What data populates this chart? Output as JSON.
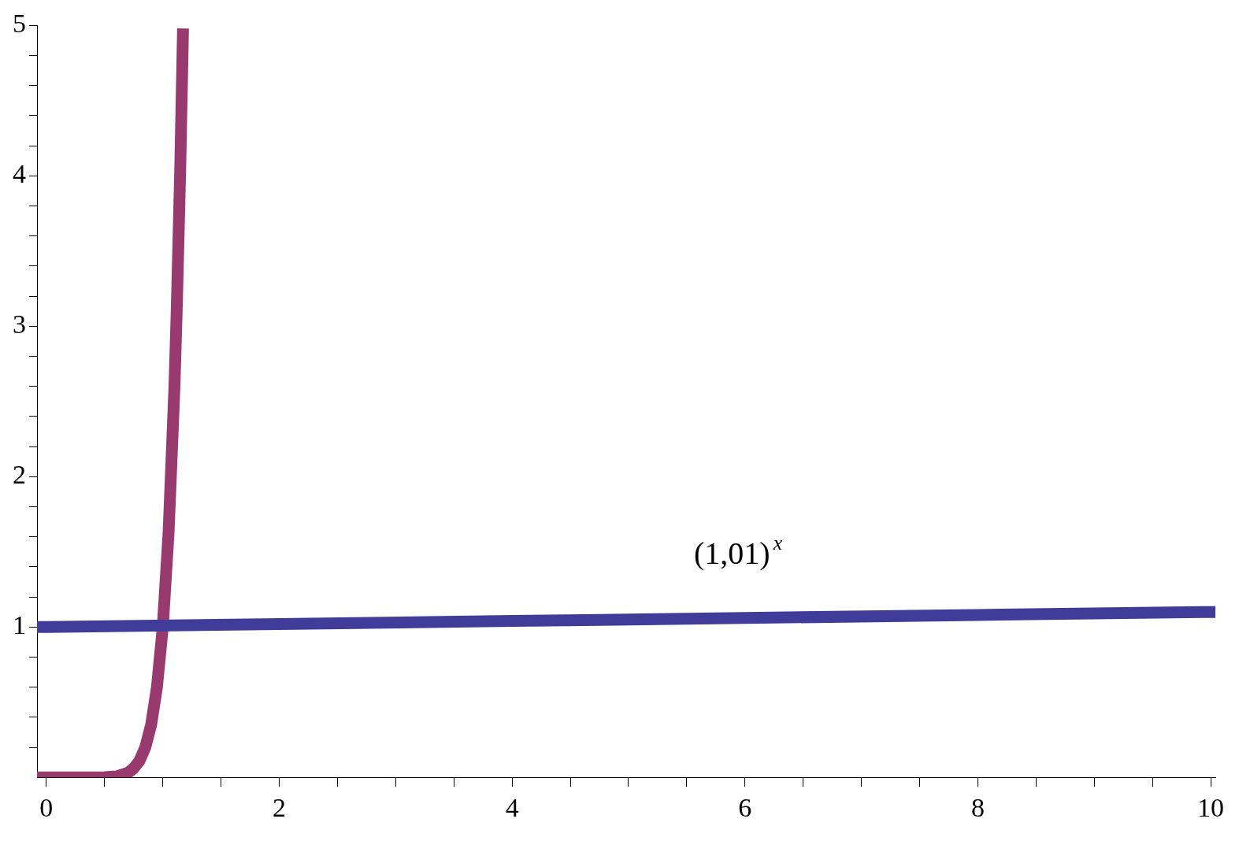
{
  "chart_data": {
    "type": "line",
    "xlim": [
      -0.08,
      10.04
    ],
    "ylim": [
      0,
      5
    ],
    "xticks": [
      0,
      {
        "value": 0.5,
        "label": null
      },
      {
        "value": 1,
        "label": null
      },
      {
        "value": 1.5,
        "label": null
      },
      2,
      {
        "value": 2.5,
        "label": null
      },
      {
        "value": 3,
        "label": null
      },
      {
        "value": 3.5,
        "label": null
      },
      4,
      {
        "value": 4.5,
        "label": null
      },
      {
        "value": 5,
        "label": null
      },
      {
        "value": 5.5,
        "label": null
      },
      6,
      {
        "value": 6.5,
        "label": null
      },
      {
        "value": 7,
        "label": null
      },
      {
        "value": 7.5,
        "label": null
      },
      8,
      {
        "value": 8.5,
        "label": null
      },
      {
        "value": 9,
        "label": null
      },
      {
        "value": 9.5,
        "label": null
      },
      10
    ],
    "yticks": [
      {
        "value": 0.2,
        "label": null
      },
      {
        "value": 0.4,
        "label": null
      },
      {
        "value": 0.6,
        "label": null
      },
      {
        "value": 0.8,
        "label": null
      },
      1,
      {
        "value": 1.2,
        "label": null
      },
      {
        "value": 1.4,
        "label": null
      },
      {
        "value": 1.6,
        "label": null
      },
      {
        "value": 1.8,
        "label": null
      },
      2,
      {
        "value": 2.2,
        "label": null
      },
      {
        "value": 2.4,
        "label": null
      },
      {
        "value": 2.6,
        "label": null
      },
      {
        "value": 2.8,
        "label": null
      },
      3,
      {
        "value": 3.2,
        "label": null
      },
      {
        "value": 3.4,
        "label": null
      },
      {
        "value": 3.6,
        "label": null
      },
      {
        "value": 3.8,
        "label": null
      },
      4,
      {
        "value": 4.2,
        "label": null
      },
      {
        "value": 4.4,
        "label": null
      },
      {
        "value": 4.6,
        "label": null
      },
      {
        "value": 4.8,
        "label": null
      },
      5
    ],
    "grid": false,
    "legend": false,
    "marker": "none",
    "line_style": "solid",
    "series": [
      {
        "color": "#3f3d99",
        "x": [
          -0.08,
          0,
          2,
          4,
          6,
          8,
          10,
          10.04
        ],
        "values": [
          1.0,
          1.0,
          1.02,
          1.04,
          1.06,
          1.08,
          1.1,
          1.1
        ]
      },
      {
        "color": "#993a6e",
        "x": [
          -0.08,
          0,
          0.3,
          0.5,
          0.6,
          0.7,
          0.75,
          0.8,
          0.85,
          0.9,
          0.95,
          1.0,
          1.05,
          1.1,
          1.12,
          1.15,
          1.174
        ],
        "values": [
          0,
          0,
          0,
          0.001,
          0.006,
          0.03,
          0.06,
          0.11,
          0.2,
          0.35,
          0.6,
          1,
          1.63,
          2.59,
          3.11,
          4.05,
          4.98
        ]
      }
    ],
    "annotations": [
      "(1,01)$^{x}$"
    ]
  }
}
